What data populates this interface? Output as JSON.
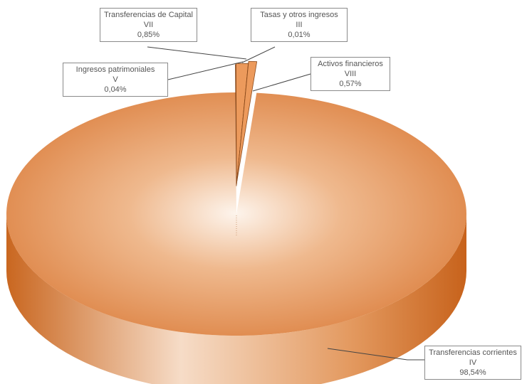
{
  "chart_data": {
    "type": "pie",
    "style": "3d-exploded",
    "colors": {
      "slice_light": "#fbece0",
      "slice_dark": "#dc7f3e",
      "side_dark": "#c9661f",
      "leader": "#444444"
    },
    "slices": [
      {
        "name": "Transferencias corrientes",
        "chapter": "IV",
        "value": 98.54,
        "label": "98,54%"
      },
      {
        "name": "Ingresos patrimoniales",
        "chapter": "V",
        "value": 0.04,
        "label": "0,04%"
      },
      {
        "name": "Transferencias de Capital",
        "chapter": "VII",
        "value": 0.85,
        "label": "0,85%"
      },
      {
        "name": "Tasas y otros ingresos",
        "chapter": "III",
        "value": 0.01,
        "label": "0,01%"
      },
      {
        "name": "Activos financieros",
        "chapter": "VIII",
        "value": 0.57,
        "label": "0,57%"
      }
    ]
  }
}
